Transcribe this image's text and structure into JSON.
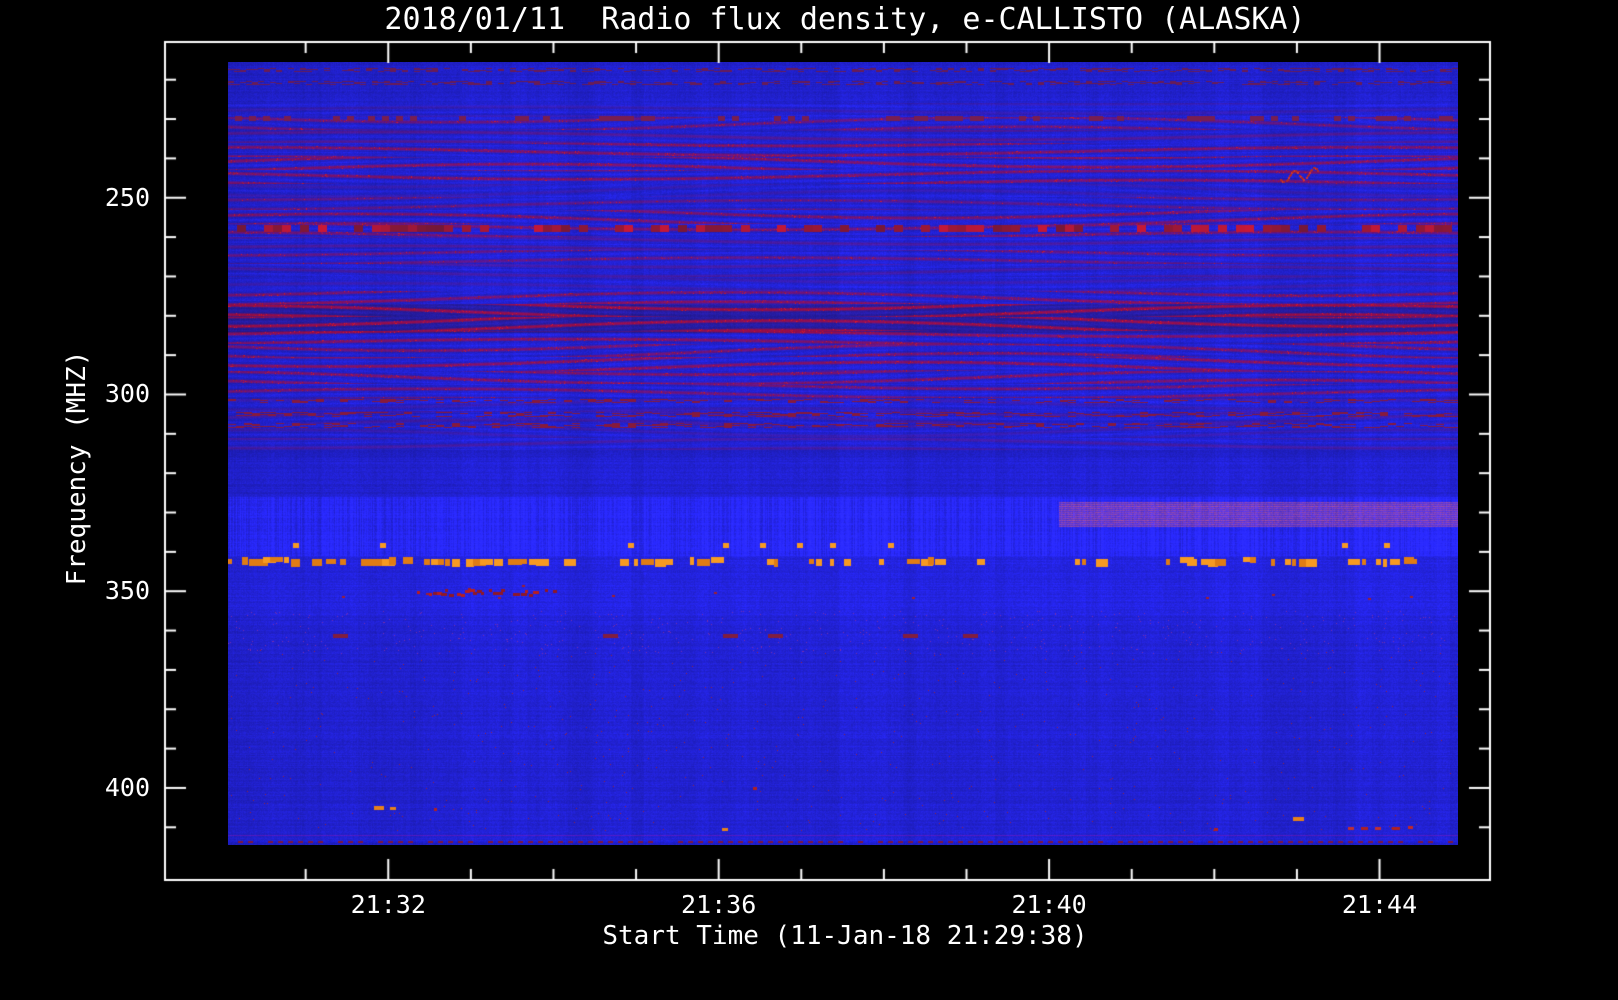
{
  "page": {
    "background": "#000000",
    "text_color": "#FFFFFF"
  },
  "chart_data": {
    "type": "heatmap",
    "title": "2018/01/11  Radio flux density, e-CALLISTO (ALASKA)",
    "xlabel": "Start Time (11-Jan-18 21:29:38)",
    "ylabel": "Frequency (MHZ)",
    "x_axis": {
      "tick_labels": [
        "21:32",
        "21:36",
        "21:40",
        "21:44"
      ],
      "tick_minutes": [
        32,
        36,
        40,
        44
      ],
      "minor_tick_step_minutes": 1,
      "range_minutes": [
        30.06,
        44.95
      ],
      "start_time": "21:29:38",
      "date": "11-Jan-18"
    },
    "y_axis": {
      "tick_labels": [
        "250",
        "300",
        "350",
        "400"
      ],
      "tick_values_mhz": [
        250,
        300,
        350,
        400
      ],
      "minor_tick_step_mhz": 10,
      "range_mhz": [
        215.5,
        414.5
      ],
      "inverted": true
    },
    "colormap": {
      "background_blue": "#2424E2",
      "bright_band_blue": "#5560F0",
      "interference_red": "#B82020",
      "burst_orange": "#F5921E",
      "dark_maroon": "#501030"
    },
    "features": [
      {
        "name": "wavy-interference-bands",
        "freq_range_mhz": [
          226,
          314
        ],
        "description": "undulating dark-red horizontal interference fringes across full time range"
      },
      {
        "name": "dark-maroon-band",
        "freq_range_mhz": [
          277,
          284.5
        ],
        "description": "prominent dark band of interference"
      },
      {
        "name": "dashed-rfi-row",
        "freq_mhz": 257.8,
        "description": "row of dark red dashes across full time range"
      },
      {
        "name": "bright-blue-band",
        "freq_range_mhz": [
          326,
          341
        ],
        "description": "lighter blue band with fine vertical striping"
      },
      {
        "name": "pink-drift-band",
        "freq_range_mhz": [
          327.3,
          333.6
        ],
        "time_range_minutes": [
          40.1,
          44.95
        ],
        "description": "salmon-pink striped band appearing after 21:40"
      },
      {
        "name": "orange-burst-row",
        "freq_mhz": 342.6,
        "description": "dense intermittent orange RFI bursts, gaps near 21:34.3 and 21:39.3"
      },
      {
        "name": "orange-dot-row",
        "freq_mhz": 338.2,
        "burst_minutes": [
          30.85,
          31.9,
          34.9,
          36.05,
          36.5,
          36.95,
          37.35,
          38.05,
          43.55,
          44.05
        ]
      },
      {
        "name": "red-speckle-band",
        "freq_range_mhz": [
          348,
          352
        ],
        "dense_segment_minutes": [
          32.35,
          34.05
        ],
        "description": "scattered dark red speckles with a dense dashed segment"
      },
      {
        "name": "red-wisp",
        "freq_mhz": 244.8,
        "time_minutes": 42.78,
        "description": "small curl of red emission near 21:42.8"
      },
      {
        "name": "low-band-specks",
        "description": "isolated orange/red specks near 404-410 MHz at 21:31.9, 21:36, 21:36.4, 21:42, 21:42.9 and dashed red segment 21:43.6-21:44.4"
      },
      {
        "name": "bottom-dotted-row",
        "freq_mhz": 413.6,
        "description": "regular dark red dotted line along bottom edge of spectrogram"
      }
    ]
  }
}
